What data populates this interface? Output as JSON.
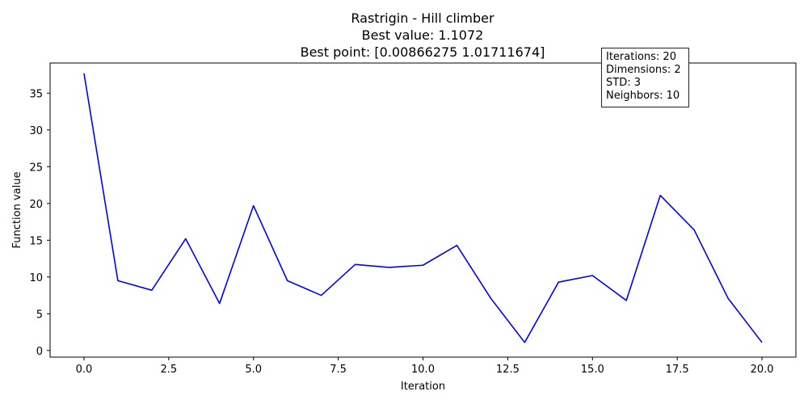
{
  "title": {
    "line1": "Rastrigin - Hill climber",
    "line2": "Best value: 1.1072",
    "line3": "Best point: [0.00866275 1.01711674]"
  },
  "info_box": {
    "lines": [
      "Iterations: 20",
      "Dimensions: 2",
      "STD: 3",
      "Neighbors: 10"
    ]
  },
  "chart_data": {
    "type": "line",
    "xlabel": "Iteration",
    "ylabel": "Function value",
    "xlim": [
      -1,
      21
    ],
    "ylim": [
      -0.9,
      39.1
    ],
    "xticks": [
      0.0,
      2.5,
      5.0,
      7.5,
      10.0,
      12.5,
      15.0,
      17.5,
      20.0
    ],
    "xtick_labels": [
      "0.0",
      "2.5",
      "5.0",
      "7.5",
      "10.0",
      "12.5",
      "15.0",
      "17.5",
      "20.0"
    ],
    "yticks": [
      0,
      5,
      10,
      15,
      20,
      25,
      30,
      35
    ],
    "ytick_labels": [
      "0",
      "5",
      "10",
      "15",
      "20",
      "25",
      "30",
      "35"
    ],
    "grid": false,
    "series": [
      {
        "color": "#0000ff",
        "x": [
          0,
          1,
          2,
          3,
          4,
          5,
          6,
          7,
          8,
          9,
          10,
          11,
          12,
          13,
          14,
          15,
          16,
          17,
          18,
          19,
          20
        ],
        "y": [
          37.7,
          9.5,
          8.2,
          15.2,
          6.4,
          19.7,
          9.5,
          7.5,
          11.7,
          11.3,
          11.6,
          14.3,
          7.1,
          1.1,
          9.3,
          10.2,
          6.8,
          21.1,
          16.4,
          7.1,
          1.1
        ]
      }
    ]
  }
}
